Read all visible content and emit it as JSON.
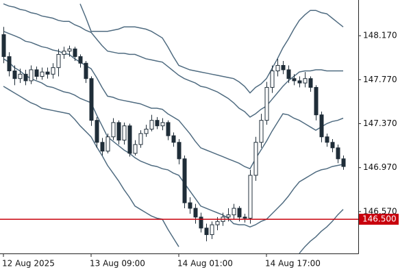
{
  "chart_data": {
    "type": "candlestick",
    "categories": [
      "12 Aug 2025",
      null,
      null,
      null,
      null,
      null,
      null,
      null,
      null,
      null,
      null,
      null,
      null,
      null,
      null,
      null,
      "13 Aug 09:00",
      null,
      null,
      null,
      null,
      null,
      null,
      null,
      null,
      null,
      null,
      null,
      null,
      null,
      null,
      null,
      "14 Aug 01:00",
      null,
      null,
      null,
      null,
      null,
      null,
      null,
      null,
      null,
      null,
      null,
      null,
      null,
      null,
      null,
      "14 Aug 17:00",
      null,
      null,
      null,
      null,
      null,
      null,
      null,
      null,
      null,
      null,
      null,
      null,
      null,
      null
    ],
    "open": [
      148.18,
      147.98,
      147.85,
      147.78,
      147.82,
      147.76,
      147.86,
      147.8,
      147.84,
      147.82,
      147.88,
      148.0,
      148.03,
      148.05,
      147.98,
      147.92,
      147.78,
      147.4,
      147.2,
      147.12,
      147.25,
      147.38,
      147.22,
      147.35,
      147.1,
      147.18,
      147.28,
      147.32,
      147.4,
      147.35,
      147.38,
      147.26,
      147.2,
      147.05,
      146.65,
      146.6,
      146.52,
      146.42,
      146.36,
      146.45,
      146.48,
      146.52,
      146.54,
      146.6,
      146.52,
      146.51,
      146.9,
      147.2,
      147.4,
      147.7,
      147.85,
      147.9,
      147.86,
      147.78,
      147.76,
      147.74,
      147.78,
      147.7,
      147.45,
      147.25,
      147.2,
      147.15,
      147.05
    ],
    "high": [
      148.25,
      148.02,
      147.9,
      147.87,
      147.86,
      147.9,
      147.89,
      147.88,
      147.88,
      147.92,
      148.05,
      148.07,
      148.08,
      148.07,
      148.0,
      147.94,
      147.8,
      147.43,
      147.24,
      147.28,
      147.42,
      147.4,
      147.38,
      147.37,
      147.22,
      147.31,
      147.36,
      147.45,
      147.43,
      147.42,
      147.4,
      147.29,
      147.23,
      147.08,
      146.7,
      146.64,
      146.56,
      146.46,
      146.48,
      146.52,
      146.56,
      146.6,
      146.64,
      146.62,
      146.55,
      146.95,
      147.25,
      147.46,
      147.75,
      147.9,
      147.96,
      147.94,
      147.9,
      147.82,
      147.8,
      147.84,
      147.8,
      147.72,
      147.48,
      147.28,
      147.23,
      147.18,
      147.08
    ],
    "low": [
      147.92,
      147.8,
      147.72,
      147.74,
      147.72,
      147.73,
      147.77,
      147.77,
      147.78,
      147.78,
      147.8,
      147.96,
      147.98,
      147.94,
      147.88,
      147.74,
      147.35,
      147.15,
      147.08,
      147.1,
      147.22,
      147.18,
      147.18,
      147.07,
      147.08,
      147.15,
      147.25,
      147.3,
      147.32,
      147.31,
      147.22,
      147.16,
      147.0,
      146.6,
      146.55,
      146.46,
      146.38,
      146.3,
      146.32,
      146.4,
      146.44,
      146.48,
      146.5,
      146.48,
      146.47,
      146.46,
      146.85,
      147.15,
      147.36,
      147.65,
      147.8,
      147.82,
      147.74,
      147.72,
      147.7,
      147.7,
      147.66,
      147.4,
      147.2,
      147.16,
      147.11,
      147.01,
      146.95
    ],
    "close": [
      147.98,
      147.85,
      147.78,
      147.82,
      147.76,
      147.86,
      147.8,
      147.84,
      147.82,
      147.88,
      148.0,
      148.03,
      148.05,
      147.98,
      147.92,
      147.78,
      147.4,
      147.2,
      147.12,
      147.25,
      147.38,
      147.22,
      147.35,
      147.1,
      147.18,
      147.28,
      147.32,
      147.4,
      147.35,
      147.38,
      147.26,
      147.2,
      147.05,
      146.65,
      146.6,
      146.52,
      146.42,
      146.36,
      146.45,
      146.48,
      146.52,
      146.54,
      146.6,
      146.52,
      146.51,
      146.9,
      147.2,
      147.4,
      147.7,
      147.85,
      147.9,
      147.86,
      147.78,
      147.76,
      147.74,
      147.78,
      147.7,
      147.45,
      147.25,
      147.2,
      147.15,
      147.05,
      146.98
    ],
    "up_color": "#ffffff",
    "down_color": "#1f2d38",
    "bands": [
      {
        "color": "#4f6b80",
        "values": [
          null,
          null,
          null,
          null,
          null,
          null,
          null,
          null,
          null,
          null,
          null,
          null,
          null,
          null,
          148.46,
          148.34,
          148.21,
          148.21,
          148.21,
          148.21,
          148.22,
          148.23,
          148.25,
          148.25,
          148.25,
          148.24,
          148.23,
          148.21,
          148.18,
          148.15,
          148.07,
          147.98,
          147.9,
          147.88,
          147.86,
          147.85,
          147.84,
          147.83,
          147.82,
          147.81,
          147.8,
          147.79,
          147.78,
          147.75,
          147.71,
          147.65,
          147.7,
          147.73,
          147.78,
          147.87,
          147.96,
          148.06,
          148.14,
          148.23,
          148.31,
          148.36,
          148.4,
          148.4,
          148.38,
          148.37,
          148.33,
          148.29,
          148.25
        ]
      },
      {
        "color": "#4f6b80",
        "values": [
          148.46,
          148.44,
          148.43,
          148.41,
          148.4,
          148.38,
          148.37,
          148.35,
          148.34,
          148.33,
          148.31,
          148.3,
          148.3,
          148.27,
          148.25,
          148.22,
          148.2,
          148.14,
          148.08,
          148.03,
          148.02,
          148.01,
          148.01,
          148.0,
          148.0,
          147.98,
          147.96,
          147.95,
          147.94,
          147.93,
          147.89,
          147.85,
          147.81,
          147.78,
          147.76,
          147.74,
          147.71,
          147.7,
          147.68,
          147.66,
          147.63,
          147.6,
          147.56,
          147.51,
          147.48,
          147.43,
          147.46,
          147.5,
          147.53,
          147.59,
          147.65,
          147.71,
          147.76,
          147.8,
          147.84,
          147.85,
          147.85,
          147.86,
          147.86,
          147.85,
          147.85,
          147.85,
          147.85
        ]
      },
      {
        "color": "#4f6b80",
        "values": [
          148.21,
          148.19,
          148.17,
          148.15,
          148.12,
          148.11,
          148.09,
          148.07,
          148.06,
          148.04,
          148.03,
          148.01,
          148.0,
          147.96,
          147.93,
          147.9,
          147.87,
          147.79,
          147.7,
          147.62,
          147.61,
          147.59,
          147.58,
          147.57,
          147.56,
          147.55,
          147.53,
          147.51,
          147.51,
          147.5,
          147.46,
          147.43,
          147.4,
          147.34,
          147.28,
          147.21,
          147.15,
          147.13,
          147.11,
          147.09,
          147.07,
          147.05,
          147.03,
          147.01,
          146.98,
          146.96,
          147.05,
          147.13,
          147.21,
          147.3,
          147.38,
          147.46,
          147.45,
          147.42,
          147.4,
          147.37,
          147.34,
          147.31,
          147.34,
          147.37,
          147.39,
          147.4,
          147.42
        ]
      },
      {
        "color": "#4f6b80",
        "values": [
          147.96,
          147.93,
          147.88,
          147.85,
          147.81,
          147.78,
          147.76,
          147.74,
          147.71,
          147.7,
          147.68,
          147.66,
          147.65,
          147.63,
          147.6,
          147.58,
          147.56,
          147.45,
          147.35,
          147.25,
          147.21,
          147.17,
          147.13,
          147.1,
          147.06,
          147.03,
          147.01,
          146.99,
          146.98,
          146.96,
          146.95,
          146.92,
          146.9,
          146.83,
          146.76,
          146.69,
          146.62,
          146.6,
          146.58,
          146.56,
          146.54,
          146.51,
          146.46,
          146.45,
          146.45,
          146.43,
          146.45,
          146.48,
          146.5,
          146.55,
          146.6,
          146.65,
          146.71,
          146.78,
          146.84,
          146.87,
          146.9,
          146.93,
          146.95,
          146.96,
          146.98,
          146.99,
          147.0
        ]
      },
      {
        "color": "#4f6b80",
        "values": [
          147.71,
          147.68,
          147.65,
          147.62,
          147.59,
          147.56,
          147.54,
          147.51,
          147.5,
          147.49,
          147.48,
          147.47,
          147.46,
          147.41,
          147.35,
          147.3,
          147.25,
          147.16,
          147.08,
          146.99,
          146.92,
          146.85,
          146.77,
          146.7,
          146.62,
          146.59,
          146.56,
          146.53,
          146.51,
          146.5,
          146.41,
          146.33,
          146.25,
          null,
          null,
          null,
          null,
          null,
          null,
          null,
          null,
          null,
          null,
          null,
          null,
          null,
          null,
          null,
          null,
          null,
          null,
          null,
          null,
          null,
          146.19,
          146.25,
          146.3,
          146.34,
          146.39,
          146.43,
          146.48,
          146.54,
          146.59
        ]
      }
    ],
    "ylim": [
      146.189,
      148.495
    ],
    "yticks": [
      {
        "value": 146.57,
        "label": "146.570"
      },
      {
        "value": 146.97,
        "label": "146.970"
      },
      {
        "value": 147.37,
        "label": "147.370"
      },
      {
        "value": 147.77,
        "label": "147.770"
      },
      {
        "value": 148.17,
        "label": "148.170"
      }
    ],
    "hline": {
      "value": 146.5,
      "label": "146.500",
      "color": "#c8000c"
    }
  }
}
